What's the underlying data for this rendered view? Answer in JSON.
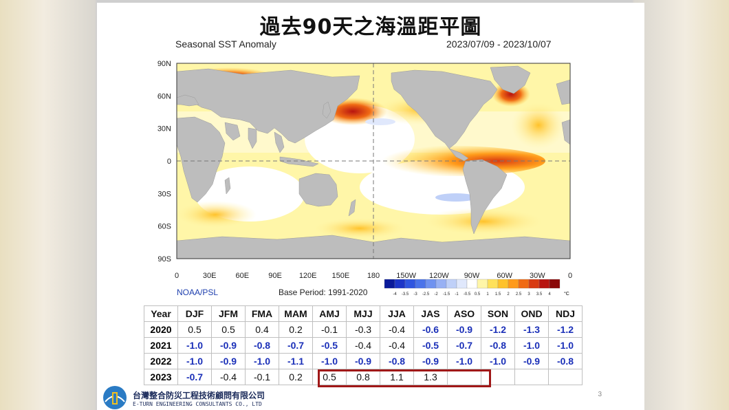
{
  "slide": {
    "title": "過去90天之海溫距平圖",
    "page_number": "3"
  },
  "chart_data": [
    {
      "type": "heatmap",
      "title": "Seasonal SST Anomaly",
      "date_range": "2023/07/09 - 2023/10/07",
      "source": "NOAA/PSL",
      "base_period": "Base Period: 1991-2020",
      "y_tick_labels": [
        "90N",
        "60N",
        "30N",
        "0",
        "30S",
        "60S",
        "90S"
      ],
      "x_tick_labels": [
        "0",
        "30E",
        "60E",
        "90E",
        "120E",
        "150E",
        "180",
        "150W",
        "120W",
        "90W",
        "60W",
        "30W",
        "0"
      ],
      "colorbar": {
        "labels": [
          "-4",
          "-3.5",
          "-3",
          "-2.5",
          "-2",
          "-1.5",
          "-1",
          "-0.5",
          "0.5",
          "1",
          "1.5",
          "2",
          "2.5",
          "3",
          "3.5",
          "4"
        ],
        "unit": "°C",
        "colors": [
          "#0a1a9a",
          "#1c35c8",
          "#2f55e0",
          "#4a73ea",
          "#6f92f0",
          "#98b1f4",
          "#bfd0f8",
          "#e0e8fc",
          "#ffffff",
          "#fff6a8",
          "#ffe15a",
          "#ffc22a",
          "#ff9a1a",
          "#f06a14",
          "#d83a12",
          "#b81410",
          "#8a0808"
        ]
      },
      "grid": "dashed equator and dateline"
    },
    {
      "type": "table",
      "headers": [
        "Year",
        "DJF",
        "JFM",
        "FMA",
        "MAM",
        "AMJ",
        "MJJ",
        "JJA",
        "JAS",
        "ASO",
        "SON",
        "OND",
        "NDJ"
      ],
      "rows": [
        {
          "year": "2020",
          "values": [
            "0.5",
            "0.5",
            "0.4",
            "0.2",
            "-0.1",
            "-0.3",
            "-0.4",
            "-0.6",
            "-0.9",
            "-1.2",
            "-1.3",
            "-1.2"
          ],
          "bold_blue": [
            false,
            false,
            false,
            false,
            false,
            false,
            false,
            true,
            true,
            true,
            true,
            true
          ]
        },
        {
          "year": "2021",
          "values": [
            "-1.0",
            "-0.9",
            "-0.8",
            "-0.7",
            "-0.5",
            "-0.4",
            "-0.4",
            "-0.5",
            "-0.7",
            "-0.8",
            "-1.0",
            "-1.0"
          ],
          "bold_blue": [
            true,
            true,
            true,
            true,
            true,
            false,
            false,
            true,
            true,
            true,
            true,
            true
          ]
        },
        {
          "year": "2022",
          "values": [
            "-1.0",
            "-0.9",
            "-1.0",
            "-1.1",
            "-1.0",
            "-0.9",
            "-0.8",
            "-0.9",
            "-1.0",
            "-1.0",
            "-0.9",
            "-0.8"
          ],
          "bold_blue": [
            true,
            true,
            true,
            true,
            true,
            true,
            true,
            true,
            true,
            true,
            true,
            true
          ]
        },
        {
          "year": "2023",
          "values": [
            "-0.7",
            "-0.4",
            "-0.1",
            "0.2",
            "0.5",
            "0.8",
            "1.1",
            "1.3",
            "",
            "",
            "",
            ""
          ],
          "bold_blue": [
            true,
            false,
            false,
            false,
            false,
            false,
            false,
            false,
            false,
            false,
            false,
            false
          ]
        }
      ],
      "highlight_color": "#a01818"
    }
  ],
  "footer": {
    "company_zh": "台灣整合防災工程技術顧問有限公司",
    "company_en": "E-TURN ENGINEERING CONSULTANTS CO., LTD"
  }
}
